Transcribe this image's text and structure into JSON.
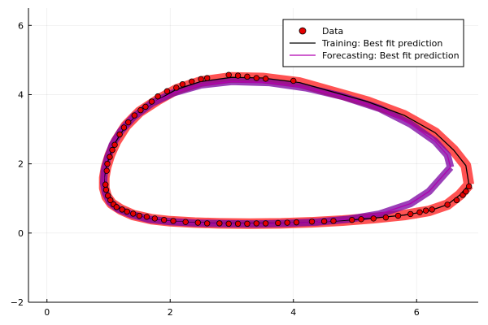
{
  "chart_data": {
    "type": "scatter",
    "title": "",
    "xlabel": "",
    "ylabel": "",
    "xlim": [
      -0.3,
      7.0
    ],
    "ylim": [
      -2,
      6.5
    ],
    "xticks": [
      0,
      2,
      4,
      6
    ],
    "yticks": [
      -2,
      0,
      2,
      4,
      6
    ],
    "grid": true,
    "legend_position": "top-right",
    "colors": {
      "data": "#e40000",
      "training": "#000000",
      "forecasting": "#b000b0",
      "ribbon": "#ff1a1a",
      "forecast_ribbon": "#7a00a0"
    },
    "legend": [
      {
        "label": "Data",
        "marker": "circle"
      },
      {
        "label": "Training: Best fit prediction",
        "marker": "line"
      },
      {
        "label": "Forecasting: Best fit prediction",
        "marker": "line"
      }
    ],
    "series": [
      {
        "name": "Data",
        "kind": "scatter",
        "points": [
          [
            0.95,
            1.4
          ],
          [
            0.96,
            1.25
          ],
          [
            0.99,
            1.08
          ],
          [
            1.03,
            0.95
          ],
          [
            1.08,
            0.83
          ],
          [
            1.13,
            0.75
          ],
          [
            1.22,
            0.68
          ],
          [
            1.3,
            0.62
          ],
          [
            1.4,
            0.56
          ],
          [
            1.5,
            0.5
          ],
          [
            1.62,
            0.47
          ],
          [
            1.75,
            0.42
          ],
          [
            1.9,
            0.38
          ],
          [
            2.05,
            0.35
          ],
          [
            2.25,
            0.32
          ],
          [
            2.45,
            0.3
          ],
          [
            2.6,
            0.28
          ],
          [
            2.8,
            0.28
          ],
          [
            2.95,
            0.27
          ],
          [
            3.1,
            0.27
          ],
          [
            3.25,
            0.27
          ],
          [
            3.4,
            0.28
          ],
          [
            3.55,
            0.28
          ],
          [
            3.75,
            0.29
          ],
          [
            3.9,
            0.3
          ],
          [
            4.05,
            0.31
          ],
          [
            4.3,
            0.33
          ],
          [
            4.5,
            0.34
          ],
          [
            4.65,
            0.35
          ],
          [
            4.95,
            0.38
          ],
          [
            5.1,
            0.4
          ],
          [
            5.3,
            0.42
          ],
          [
            5.5,
            0.45
          ],
          [
            5.7,
            0.5
          ],
          [
            5.9,
            0.55
          ],
          [
            6.05,
            0.6
          ],
          [
            6.15,
            0.65
          ],
          [
            6.25,
            0.68
          ],
          [
            6.5,
            0.82
          ],
          [
            6.65,
            0.95
          ],
          [
            6.75,
            1.1
          ],
          [
            6.8,
            1.2
          ],
          [
            6.85,
            1.35
          ],
          [
            0.97,
            1.8
          ],
          [
            0.98,
            2.0
          ],
          [
            1.02,
            2.2
          ],
          [
            1.06,
            2.4
          ],
          [
            1.1,
            2.55
          ],
          [
            1.18,
            2.85
          ],
          [
            1.25,
            3.05
          ],
          [
            1.32,
            3.2
          ],
          [
            1.42,
            3.4
          ],
          [
            1.52,
            3.55
          ],
          [
            1.6,
            3.65
          ],
          [
            1.7,
            3.8
          ],
          [
            1.8,
            3.95
          ],
          [
            1.95,
            4.1
          ],
          [
            2.1,
            4.2
          ],
          [
            2.2,
            4.3
          ],
          [
            2.35,
            4.38
          ],
          [
            2.5,
            4.45
          ],
          [
            2.6,
            4.48
          ],
          [
            2.95,
            4.57
          ],
          [
            3.1,
            4.55
          ],
          [
            3.25,
            4.52
          ],
          [
            3.4,
            4.48
          ],
          [
            3.55,
            4.46
          ],
          [
            4.0,
            4.4
          ]
        ]
      },
      {
        "name": "Training: Best fit prediction",
        "kind": "line",
        "points": [
          [
            6.85,
            1.4
          ],
          [
            6.7,
            1.1
          ],
          [
            6.5,
            0.82
          ],
          [
            6.2,
            0.64
          ],
          [
            5.8,
            0.52
          ],
          [
            5.3,
            0.43
          ],
          [
            4.8,
            0.36
          ],
          [
            4.3,
            0.31
          ],
          [
            3.8,
            0.28
          ],
          [
            3.3,
            0.27
          ],
          [
            2.8,
            0.28
          ],
          [
            2.4,
            0.3
          ],
          [
            2.0,
            0.34
          ],
          [
            1.7,
            0.4
          ],
          [
            1.4,
            0.52
          ],
          [
            1.2,
            0.68
          ],
          [
            1.05,
            0.85
          ],
          [
            0.97,
            1.05
          ],
          [
            0.93,
            1.3
          ],
          [
            0.93,
            1.6
          ],
          [
            0.96,
            1.9
          ],
          [
            1.02,
            2.25
          ],
          [
            1.12,
            2.65
          ],
          [
            1.28,
            3.1
          ],
          [
            1.5,
            3.5
          ],
          [
            1.8,
            3.85
          ],
          [
            2.1,
            4.15
          ],
          [
            2.5,
            4.38
          ],
          [
            3.0,
            4.5
          ],
          [
            3.5,
            4.48
          ],
          [
            4.1,
            4.35
          ],
          [
            4.6,
            4.1
          ],
          [
            5.2,
            3.8
          ],
          [
            5.8,
            3.4
          ],
          [
            6.3,
            2.9
          ],
          [
            6.6,
            2.4
          ],
          [
            6.8,
            1.95
          ],
          [
            6.85,
            1.4
          ]
        ]
      },
      {
        "name": "Forecasting: Best fit prediction",
        "kind": "line",
        "points": [
          [
            6.55,
            1.9
          ],
          [
            6.4,
            1.6
          ],
          [
            6.2,
            1.2
          ],
          [
            5.9,
            0.85
          ],
          [
            5.4,
            0.55
          ],
          [
            4.9,
            0.4
          ],
          [
            4.4,
            0.32
          ],
          [
            3.9,
            0.28
          ],
          [
            3.4,
            0.26
          ],
          [
            2.9,
            0.27
          ],
          [
            2.4,
            0.29
          ],
          [
            2.0,
            0.33
          ],
          [
            1.65,
            0.4
          ],
          [
            1.35,
            0.55
          ],
          [
            1.15,
            0.7
          ],
          [
            1.02,
            0.9
          ],
          [
            0.95,
            1.15
          ],
          [
            0.92,
            1.45
          ],
          [
            0.93,
            1.8
          ],
          [
            0.98,
            2.15
          ],
          [
            1.06,
            2.55
          ],
          [
            1.2,
            2.95
          ],
          [
            1.4,
            3.35
          ],
          [
            1.7,
            3.75
          ],
          [
            2.05,
            4.05
          ],
          [
            2.5,
            4.28
          ],
          [
            3.0,
            4.38
          ],
          [
            3.6,
            4.35
          ],
          [
            4.2,
            4.2
          ],
          [
            4.8,
            3.95
          ],
          [
            5.4,
            3.6
          ],
          [
            5.9,
            3.15
          ],
          [
            6.3,
            2.65
          ],
          [
            6.5,
            2.25
          ],
          [
            6.55,
            1.9
          ]
        ]
      }
    ],
    "ribbons": [
      {
        "points": [
          [
            6.85,
            1.4
          ],
          [
            6.7,
            1.1
          ],
          [
            6.5,
            0.82
          ],
          [
            6.2,
            0.64
          ],
          [
            5.8,
            0.52
          ],
          [
            5.3,
            0.43
          ],
          [
            4.8,
            0.36
          ],
          [
            4.3,
            0.31
          ],
          [
            3.8,
            0.28
          ],
          [
            3.3,
            0.27
          ],
          [
            2.8,
            0.28
          ],
          [
            2.4,
            0.3
          ],
          [
            2.0,
            0.34
          ],
          [
            1.7,
            0.4
          ],
          [
            1.4,
            0.52
          ],
          [
            1.2,
            0.68
          ],
          [
            1.05,
            0.85
          ],
          [
            0.97,
            1.05
          ],
          [
            0.93,
            1.3
          ],
          [
            0.93,
            1.6
          ],
          [
            0.96,
            1.9
          ],
          [
            1.02,
            2.25
          ],
          [
            1.12,
            2.65
          ],
          [
            1.28,
            3.1
          ],
          [
            1.5,
            3.5
          ],
          [
            1.8,
            3.85
          ],
          [
            2.1,
            4.15
          ],
          [
            2.5,
            4.38
          ],
          [
            3.0,
            4.5
          ],
          [
            3.5,
            4.48
          ],
          [
            4.1,
            4.35
          ],
          [
            4.6,
            4.1
          ],
          [
            5.2,
            3.8
          ],
          [
            5.8,
            3.4
          ],
          [
            6.3,
            2.9
          ],
          [
            6.6,
            2.4
          ],
          [
            6.8,
            1.95
          ],
          [
            6.85,
            1.4
          ]
        ]
      },
      {
        "points": [
          [
            6.55,
            1.9
          ],
          [
            6.4,
            1.6
          ],
          [
            6.2,
            1.2
          ],
          [
            5.9,
            0.85
          ],
          [
            5.4,
            0.55
          ],
          [
            4.9,
            0.4
          ],
          [
            4.4,
            0.32
          ],
          [
            3.9,
            0.28
          ],
          [
            3.4,
            0.26
          ],
          [
            2.9,
            0.27
          ],
          [
            2.4,
            0.29
          ],
          [
            2.0,
            0.33
          ],
          [
            1.65,
            0.4
          ],
          [
            1.35,
            0.55
          ],
          [
            1.15,
            0.7
          ],
          [
            1.02,
            0.9
          ],
          [
            0.95,
            1.15
          ],
          [
            0.92,
            1.45
          ],
          [
            0.93,
            1.8
          ],
          [
            0.98,
            2.15
          ],
          [
            1.06,
            2.55
          ],
          [
            1.2,
            2.95
          ],
          [
            1.4,
            3.35
          ],
          [
            1.7,
            3.75
          ],
          [
            2.05,
            4.05
          ],
          [
            2.5,
            4.28
          ],
          [
            3.0,
            4.38
          ],
          [
            3.6,
            4.35
          ],
          [
            4.2,
            4.2
          ],
          [
            4.8,
            3.95
          ],
          [
            5.4,
            3.6
          ],
          [
            5.9,
            3.15
          ],
          [
            6.3,
            2.65
          ],
          [
            6.5,
            2.25
          ],
          [
            6.55,
            1.9
          ]
        ]
      }
    ]
  }
}
